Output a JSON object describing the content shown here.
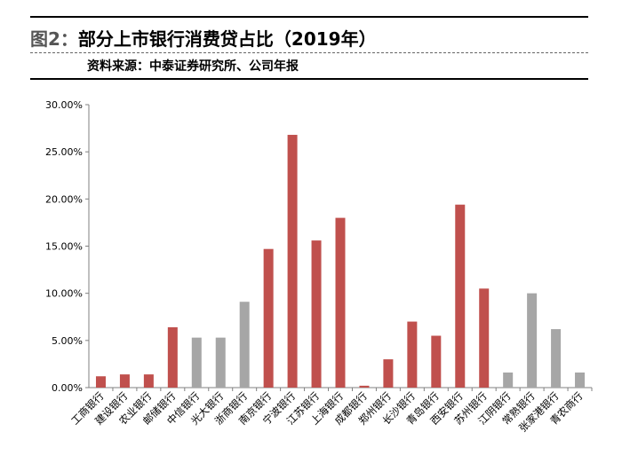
{
  "header": {
    "figure_label": "图2：",
    "title": "部分上市银行消费贷占比（2019年）",
    "source": "资料来源：中泰证券研究所、公司年报"
  },
  "colors": {
    "red": "#C0504D",
    "gray": "#A6A6A6",
    "axis": "#808080"
  },
  "chart_data": {
    "type": "bar",
    "categories": [
      "工商银行",
      "建设银行",
      "农业银行",
      "邮储银行",
      "中信银行",
      "光大银行",
      "浙商银行",
      "南京银行",
      "宁波银行",
      "江苏银行",
      "上海银行",
      "成都银行",
      "郑州银行",
      "长沙银行",
      "青岛银行",
      "西安银行",
      "苏州银行",
      "江阴银行",
      "常熟银行",
      "张家港银行",
      "青农商行"
    ],
    "values": [
      1.2,
      1.4,
      1.4,
      6.4,
      5.3,
      5.3,
      9.1,
      14.7,
      26.8,
      15.6,
      18.0,
      0.2,
      3.0,
      7.0,
      5.5,
      19.4,
      10.5,
      1.6,
      10.0,
      6.2,
      1.6
    ],
    "bar_colors": [
      "red",
      "red",
      "red",
      "red",
      "gray",
      "gray",
      "gray",
      "red",
      "red",
      "red",
      "red",
      "red",
      "red",
      "red",
      "red",
      "red",
      "red",
      "gray",
      "gray",
      "gray",
      "gray"
    ],
    "ylim": [
      0,
      30
    ],
    "yticks": [
      "0.00%",
      "5.00%",
      "10.00%",
      "15.00%",
      "20.00%",
      "25.00%",
      "30.00%"
    ],
    "title": "",
    "xlabel": "",
    "ylabel": "",
    "grid": false,
    "legend": "none"
  }
}
